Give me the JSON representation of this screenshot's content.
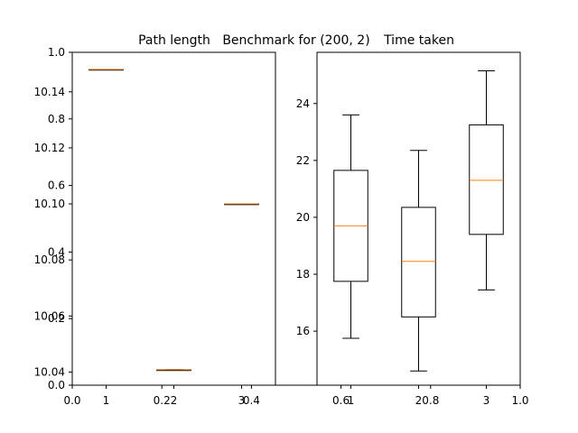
{
  "figure": {
    "overlay_ticks": {
      "x": [
        "0.0",
        "0.2",
        "0.4",
        "0.6",
        "0.8",
        "1.0"
      ],
      "y": [
        "0.0",
        "0.2",
        "0.4",
        "0.6",
        "0.8",
        "1.0"
      ]
    }
  },
  "chart_data": [
    {
      "type": "box",
      "title": "Path length",
      "categories": [
        "1",
        "2",
        "3"
      ],
      "y_ticks": [
        "10.04",
        "10.06",
        "10.08",
        "10.10",
        "10.12",
        "10.14"
      ],
      "ylim": [
        10.0353,
        10.1541
      ],
      "boxes": [
        {
          "category": "1",
          "min": 10.148,
          "q1": 10.148,
          "median": 10.148,
          "q3": 10.148,
          "max": 10.148
        },
        {
          "category": "2",
          "min": 10.0408,
          "q1": 10.0408,
          "median": 10.0408,
          "q3": 10.0408,
          "max": 10.0408
        },
        {
          "category": "3",
          "min": 10.1,
          "q1": 10.1,
          "median": 10.1,
          "q3": 10.1,
          "max": 10.1
        }
      ],
      "colors": {
        "box": "#000000",
        "median": "#ff7f0e"
      }
    },
    {
      "type": "box",
      "title": "Benchmark for (200, 2)",
      "categories": [],
      "boxes": []
    },
    {
      "type": "box",
      "title": "Time taken",
      "categories": [
        "1",
        "2",
        "3"
      ],
      "y_ticks": [
        "16",
        "18",
        "20",
        "22",
        "24"
      ],
      "ylim": [
        14.1,
        25.8
      ],
      "boxes": [
        {
          "category": "1",
          "min": 15.75,
          "q1": 17.75,
          "median": 19.7,
          "q3": 21.65,
          "max": 23.6
        },
        {
          "category": "2",
          "min": 14.6,
          "q1": 16.5,
          "median": 18.45,
          "q3": 20.35,
          "max": 22.35
        },
        {
          "category": "3",
          "min": 17.45,
          "q1": 19.4,
          "median": 21.3,
          "q3": 23.25,
          "max": 25.15
        }
      ],
      "colors": {
        "box": "#000000",
        "median": "#ff7f0e"
      }
    }
  ]
}
